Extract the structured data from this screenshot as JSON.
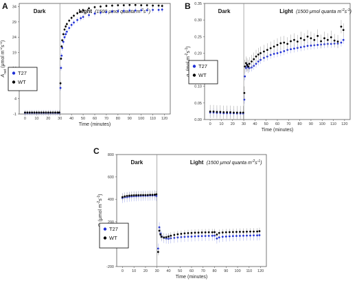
{
  "chart_data": [
    {
      "type": "scatter",
      "panel_letter": "A",
      "xlabel": "Time (minutes)",
      "ylabel": "A_net (μmol m⁻²s⁻¹)",
      "ylabel_main": "A",
      "ylabel_sub": "net",
      "ylabel_rest": " (μmol m",
      "ylabel_sup1": "-2",
      "ylabel_mid": "s",
      "ylabel_sup2": "-1",
      "ylabel_end": ")",
      "xlim": [
        -5,
        125
      ],
      "ylim": [
        -1,
        35
      ],
      "xticks": [
        0,
        10,
        20,
        30,
        40,
        50,
        60,
        70,
        80,
        90,
        100,
        110,
        120
      ],
      "yticks": [
        -1,
        4,
        9,
        14,
        19,
        24,
        29,
        34
      ],
      "grid": false,
      "dark_label": "Dark",
      "light_label": "Light",
      "light_condition": "(1500 μmol quanta m⁻²s⁻¹)",
      "light_cond_base": "(1500 μmol quanta m",
      "light_cond_sup1": "-2",
      "light_cond_mid": "s",
      "light_cond_sup2": "-1",
      "light_cond_end": ")",
      "transition_x": 30,
      "legend_position": "middle-left",
      "series": [
        {
          "name": "T27",
          "color": "#1f2fd6",
          "err": 0.9,
          "x": [
            0,
            2,
            4,
            6,
            8,
            10,
            12,
            14,
            16,
            18,
            20,
            22,
            24,
            26,
            28,
            29.5,
            30.5,
            31,
            31.5,
            32,
            33,
            34,
            35,
            36,
            38,
            40,
            42,
            45,
            48,
            50,
            55,
            60,
            65,
            70,
            75,
            80,
            85,
            90,
            95,
            100,
            105,
            110,
            115,
            118
          ],
          "y": [
            -0.6,
            -0.6,
            -0.6,
            -0.6,
            -0.6,
            -0.6,
            -0.6,
            -0.6,
            -0.6,
            -0.6,
            -0.6,
            -0.6,
            -0.6,
            -0.6,
            -0.6,
            -0.6,
            7.5,
            14,
            18,
            20.5,
            22.5,
            24,
            25,
            25.8,
            27,
            28,
            28.8,
            29.6,
            30.2,
            30.6,
            31.2,
            31.7,
            32,
            32.2,
            32.4,
            32.5,
            32.6,
            32.7,
            32.7,
            32.8,
            32.8,
            32.9,
            32.9,
            33
          ]
        },
        {
          "name": "WT",
          "color": "#000000",
          "err": 0.6,
          "x": [
            0,
            2,
            4,
            6,
            8,
            10,
            12,
            14,
            16,
            18,
            20,
            22,
            24,
            26,
            28,
            29.5,
            30.5,
            31,
            31.5,
            32,
            33,
            34,
            35,
            36,
            38,
            40,
            42,
            45,
            48,
            50,
            55,
            60,
            65,
            70,
            75,
            80,
            85,
            90,
            95,
            100,
            105,
            110,
            115,
            118
          ],
          "y": [
            -0.5,
            -0.5,
            -0.5,
            -0.5,
            -0.5,
            -0.5,
            -0.5,
            -0.5,
            -0.5,
            -0.5,
            -0.5,
            -0.5,
            -0.5,
            -0.5,
            -0.5,
            -0.5,
            9,
            17,
            21,
            23,
            25,
            26.5,
            27.5,
            28.3,
            29.4,
            30.3,
            31,
            31.8,
            32.4,
            32.8,
            33.4,
            33.8,
            34,
            34.2,
            34.3,
            34.4,
            34.4,
            34.5,
            34.5,
            34.4,
            34.4,
            34.3,
            34.3,
            34.2
          ]
        }
      ]
    },
    {
      "type": "scatter",
      "panel_letter": "B",
      "xlabel": "Time (minutes)",
      "ylabel": "g_s (mol m⁻²s⁻¹)",
      "ylabel_main": "g",
      "ylabel_sub": "s",
      "ylabel_rest": " (mol m",
      "ylabel_sup1": "-2",
      "ylabel_mid": "s",
      "ylabel_sup2": "-1",
      "ylabel_end": ")",
      "xlim": [
        -5,
        125
      ],
      "ylim": [
        0,
        0.35
      ],
      "xticks": [
        0,
        10,
        20,
        30,
        40,
        50,
        60,
        70,
        80,
        90,
        100,
        110,
        120
      ],
      "yticks": [
        0,
        0.05,
        0.1,
        0.15,
        0.2,
        0.25,
        0.3,
        0.35
      ],
      "ytick_labels": [
        "0.00",
        "0.05",
        "0.10",
        "0.15",
        "0.20",
        "0.25",
        "0.30",
        "0.35"
      ],
      "grid": false,
      "dark_label": "Dark",
      "light_label": "Light",
      "light_condition": "(1500 μmol quanta m⁻²s⁻¹)",
      "light_cond_base": "(1500 μmol quanta m",
      "light_cond_sup1": "-2",
      "light_cond_mid": "s",
      "light_cond_sup2": "-1",
      "light_cond_end": ")",
      "transition_x": 30,
      "legend_position": "middle-left",
      "series": [
        {
          "name": "T27",
          "color": "#1f2fd6",
          "err": 0.012,
          "x": [
            0,
            3,
            6,
            9,
            12,
            15,
            18,
            21,
            24,
            27,
            29.5,
            30.5,
            31,
            32,
            33,
            34,
            35,
            37,
            39,
            41,
            43,
            45,
            48,
            51,
            54,
            57,
            60,
            63,
            66,
            69,
            72,
            75,
            78,
            81,
            84,
            87,
            90,
            93,
            96,
            99,
            102,
            105,
            108,
            111,
            114,
            117,
            119
          ],
          "y": [
            0.021,
            0.021,
            0.02,
            0.02,
            0.019,
            0.019,
            0.019,
            0.019,
            0.018,
            0.018,
            0.018,
            0.06,
            0.13,
            0.155,
            0.16,
            0.158,
            0.155,
            0.157,
            0.162,
            0.168,
            0.175,
            0.18,
            0.186,
            0.19,
            0.195,
            0.198,
            0.2,
            0.203,
            0.206,
            0.21,
            0.212,
            0.214,
            0.216,
            0.218,
            0.22,
            0.222,
            0.223,
            0.224,
            0.225,
            0.226,
            0.227,
            0.228,
            0.228,
            0.229,
            0.229,
            0.232,
            0.24
          ]
        },
        {
          "name": "WT",
          "color": "#000000",
          "err": 0.02,
          "x": [
            0,
            3,
            6,
            9,
            12,
            15,
            18,
            21,
            24,
            27,
            29.5,
            30.5,
            31,
            32,
            33,
            34,
            35,
            37,
            39,
            41,
            43,
            45,
            48,
            51,
            54,
            57,
            60,
            63,
            66,
            69,
            72,
            75,
            78,
            81,
            84,
            87,
            90,
            93,
            96,
            99,
            102,
            105,
            108,
            111,
            114,
            117,
            119
          ],
          "y": [
            0.024,
            0.024,
            0.023,
            0.023,
            0.022,
            0.022,
            0.022,
            0.021,
            0.021,
            0.021,
            0.021,
            0.08,
            0.16,
            0.17,
            0.165,
            0.16,
            0.168,
            0.175,
            0.182,
            0.19,
            0.196,
            0.2,
            0.205,
            0.21,
            0.215,
            0.22,
            0.225,
            0.23,
            0.232,
            0.228,
            0.236,
            0.24,
            0.235,
            0.245,
            0.24,
            0.25,
            0.245,
            0.24,
            0.252,
            0.236,
            0.245,
            0.24,
            0.248,
            0.238,
            0.235,
            0.28,
            0.27
          ]
        }
      ]
    },
    {
      "type": "scatter",
      "panel_letter": "C",
      "xlabel": "Time (minutes)",
      "ylabel": "C_i (μmol m⁻²s⁻¹)",
      "ylabel_main": "C",
      "ylabel_sub": "i",
      "ylabel_rest": " (μmol m",
      "ylabel_sup1": "-2",
      "ylabel_mid": "s",
      "ylabel_sup2": "-1",
      "ylabel_end": ")",
      "xlim": [
        -5,
        125
      ],
      "ylim": [
        -200,
        800
      ],
      "xticks": [
        0,
        10,
        20,
        30,
        40,
        50,
        60,
        70,
        80,
        90,
        100,
        110,
        120
      ],
      "yticks": [
        -200,
        0,
        200,
        400,
        600,
        800
      ],
      "grid": false,
      "dark_label": "Dark",
      "light_label": "Light",
      "light_condition": "(1500 μmol quanta m⁻²s⁻¹)",
      "light_cond_base": "(1500 μmol quanta m",
      "light_cond_sup1": "-2",
      "light_cond_mid": "s",
      "light_cond_sup2": "-1",
      "light_cond_end": ")",
      "transition_x": 30,
      "legend_position": "bottom-left",
      "series": [
        {
          "name": "T27",
          "color": "#1f2fd6",
          "err": 45,
          "x": [
            0,
            2,
            4,
            6,
            8,
            10,
            12,
            14,
            16,
            18,
            20,
            22,
            24,
            26,
            28,
            29.5,
            31,
            32,
            33,
            34,
            36,
            38,
            40,
            42,
            45,
            48,
            51,
            54,
            57,
            60,
            63,
            66,
            69,
            72,
            75,
            78,
            80,
            82,
            84,
            87,
            90,
            93,
            96,
            99,
            102,
            105,
            108,
            111,
            114,
            117,
            119
          ],
          "y": [
            412,
            418,
            420,
            424,
            426,
            428,
            428,
            430,
            430,
            432,
            432,
            432,
            434,
            434,
            436,
            430,
            -40,
            150,
            95,
            70,
            55,
            50,
            48,
            52,
            56,
            60,
            63,
            65,
            67,
            68,
            70,
            71,
            72,
            73,
            74,
            75,
            76,
            50,
            60,
            66,
            68,
            70,
            72,
            73,
            74,
            75,
            76,
            77,
            78,
            78,
            80
          ]
        },
        {
          "name": "WT",
          "color": "#000000",
          "err": 30,
          "x": [
            0,
            2,
            4,
            6,
            8,
            10,
            12,
            14,
            16,
            18,
            20,
            22,
            24,
            26,
            28,
            29.5,
            31,
            32,
            33,
            34,
            36,
            38,
            40,
            42,
            45,
            48,
            51,
            54,
            57,
            60,
            63,
            66,
            69,
            72,
            75,
            78,
            80,
            82,
            84,
            87,
            90,
            93,
            96,
            99,
            102,
            105,
            108,
            111,
            114,
            117,
            119
          ],
          "y": [
            420,
            426,
            430,
            433,
            435,
            436,
            437,
            437,
            438,
            438,
            438,
            439,
            440,
            440,
            442,
            445,
            -70,
            120,
            85,
            65,
            60,
            62,
            68,
            75,
            82,
            88,
            92,
            96,
            98,
            100,
            102,
            103,
            104,
            105,
            106,
            106,
            107,
            85,
            100,
            104,
            106,
            107,
            108,
            109,
            110,
            110,
            111,
            112,
            112,
            113,
            116
          ]
        }
      ]
    }
  ]
}
